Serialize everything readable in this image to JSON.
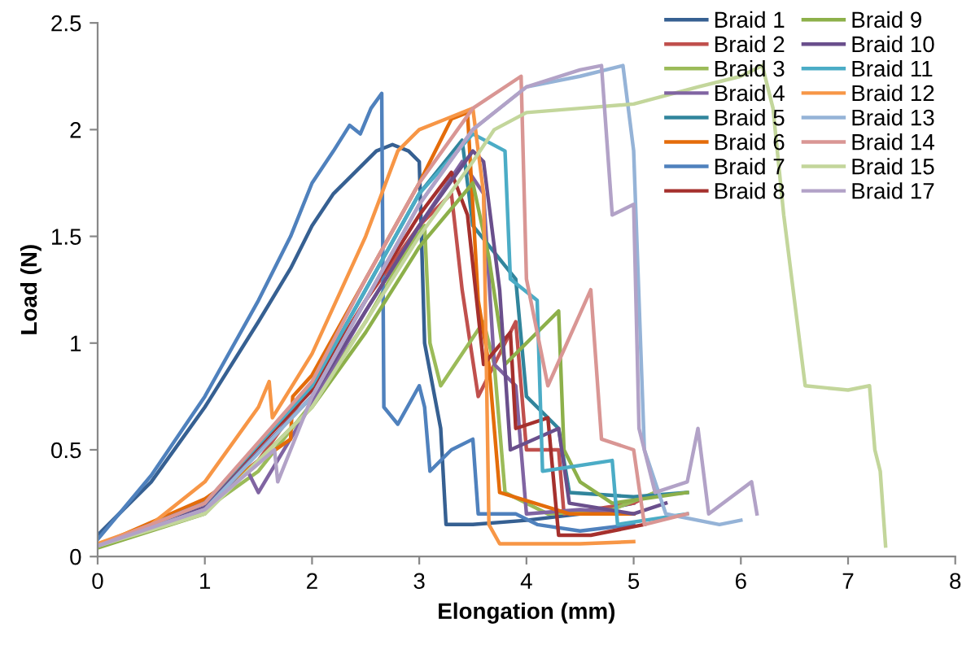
{
  "chart_data": {
    "type": "line",
    "xlabel": "Elongation (mm)",
    "ylabel": "Load (N)",
    "xlim": [
      0,
      8
    ],
    "xticks": [
      0,
      1,
      2,
      3,
      4,
      5,
      6,
      7,
      8
    ],
    "ylim": [
      0,
      2.5
    ],
    "yticks": [
      0,
      0.5,
      1,
      1.5,
      2,
      2.5
    ],
    "grid": false,
    "legend": "top right",
    "marker": "none",
    "line_style": "solid",
    "series": [
      {
        "name": "Braid 1",
        "color": "#366092",
        "x": [
          0,
          0.5,
          1,
          1.5,
          1.8,
          2,
          2.2,
          2.4,
          2.6,
          2.75,
          2.9,
          3.0,
          3.05,
          3.2,
          3.25,
          3.5,
          4,
          4.5,
          5
        ],
        "values": [
          0.1,
          0.35,
          0.7,
          1.1,
          1.35,
          1.55,
          1.7,
          1.8,
          1.9,
          1.93,
          1.9,
          1.85,
          1.0,
          0.6,
          0.15,
          0.15,
          0.17,
          0.2,
          0.25
        ]
      },
      {
        "name": "Braid 2",
        "color": "#c0504d",
        "x": [
          0,
          1,
          1.5,
          2,
          2.5,
          3,
          3.3,
          3.4,
          3.55,
          3.9,
          3.95,
          4.0,
          4.3,
          4.35,
          5,
          5.2
        ],
        "values": [
          0.05,
          0.25,
          0.45,
          0.8,
          1.2,
          1.55,
          1.7,
          1.25,
          0.75,
          1.1,
          0.8,
          0.5,
          0.5,
          0.2,
          0.25,
          0.3
        ]
      },
      {
        "name": "Braid 3",
        "color": "#9bbb59",
        "x": [
          0,
          1,
          1.5,
          2,
          2.5,
          2.9,
          3.05,
          3.1,
          3.2,
          3.6,
          3.7,
          3.8,
          4.2,
          4.8,
          5.2
        ],
        "values": [
          0.05,
          0.22,
          0.4,
          0.72,
          1.1,
          1.45,
          1.55,
          1.0,
          0.8,
          1.1,
          0.9,
          0.3,
          0.2,
          0.22,
          0.3
        ]
      },
      {
        "name": "Braid 4",
        "color": "#8064a2",
        "x": [
          0,
          1,
          1.4,
          1.5,
          2,
          2.5,
          3,
          3.4,
          3.6,
          3.7,
          3.9,
          4.0,
          4.5,
          5
        ],
        "values": [
          0.05,
          0.22,
          0.4,
          0.3,
          0.72,
          1.15,
          1.55,
          1.85,
          1.7,
          0.9,
          0.8,
          0.2,
          0.22,
          0.2
        ]
      },
      {
        "name": "Braid 5",
        "color": "#31859c",
        "x": [
          0,
          1,
          2,
          2.5,
          3,
          3.4,
          3.5,
          3.9,
          4.0,
          4.3,
          4.4,
          5,
          5.5
        ],
        "values": [
          0.05,
          0.25,
          0.8,
          1.25,
          1.7,
          1.95,
          1.55,
          1.3,
          0.75,
          0.6,
          0.3,
          0.28,
          0.3
        ]
      },
      {
        "name": "Braid 6",
        "color": "#e46c0a",
        "x": [
          0,
          1,
          1.8,
          1.82,
          2,
          2.5,
          3,
          3.3,
          3.45,
          3.55,
          3.65,
          3.75,
          4.4,
          5
        ],
        "values": [
          0.05,
          0.27,
          0.55,
          0.75,
          0.85,
          1.3,
          1.75,
          2.05,
          2.08,
          1.2,
          0.9,
          0.3,
          0.2,
          0.2
        ]
      },
      {
        "name": "Braid 7",
        "color": "#4f81bd",
        "x": [
          0,
          0.5,
          1,
          1.5,
          1.8,
          2,
          2.2,
          2.35,
          2.45,
          2.55,
          2.65,
          2.67,
          2.8,
          3.0,
          3.05,
          3.1,
          3.3,
          3.5,
          3.55,
          3.9,
          4.1,
          4.5,
          5
        ],
        "values": [
          0.08,
          0.38,
          0.75,
          1.2,
          1.5,
          1.75,
          1.9,
          2.02,
          1.98,
          2.1,
          2.17,
          0.7,
          0.62,
          0.8,
          0.7,
          0.4,
          0.5,
          0.55,
          0.2,
          0.2,
          0.15,
          0.12,
          0.15
        ]
      },
      {
        "name": "Braid 8",
        "color": "#a5302d",
        "x": [
          0,
          1,
          2,
          2.5,
          3,
          3.3,
          3.45,
          3.6,
          3.85,
          3.9,
          4.2,
          4.3,
          4.6,
          5.1
        ],
        "values": [
          0.05,
          0.25,
          0.78,
          1.2,
          1.6,
          1.8,
          1.6,
          0.9,
          1.05,
          0.6,
          0.65,
          0.1,
          0.1,
          0.15
        ]
      },
      {
        "name": "Braid 9",
        "color": "#8db04a",
        "x": [
          0,
          1,
          2,
          2.5,
          3,
          3.5,
          3.65,
          3.8,
          4.3,
          4.35,
          4.5,
          4.8,
          5.5
        ],
        "values": [
          0.04,
          0.2,
          0.7,
          1.05,
          1.45,
          1.75,
          1.4,
          0.9,
          1.15,
          0.5,
          0.35,
          0.25,
          0.3
        ]
      },
      {
        "name": "Braid 10",
        "color": "#6a4f8c",
        "x": [
          0,
          1,
          2,
          2.5,
          3,
          3.5,
          3.6,
          3.75,
          3.85,
          4.3,
          4.4,
          5,
          5.3
        ],
        "values": [
          0.05,
          0.23,
          0.75,
          1.15,
          1.55,
          1.9,
          1.85,
          1.25,
          0.5,
          0.6,
          0.25,
          0.2,
          0.25
        ]
      },
      {
        "name": "Braid 11",
        "color": "#4bacc6",
        "x": [
          0,
          1,
          2,
          2.5,
          3,
          3.5,
          3.8,
          3.85,
          4.1,
          4.15,
          4.8,
          4.85,
          5.5
        ],
        "values": [
          0.05,
          0.25,
          0.8,
          1.25,
          1.7,
          1.98,
          1.9,
          1.3,
          1.2,
          0.4,
          0.45,
          0.15,
          0.2
        ]
      },
      {
        "name": "Braid 12",
        "color": "#f79646",
        "x": [
          0,
          0.5,
          1,
          1.5,
          1.6,
          1.63,
          2,
          2.5,
          2.8,
          3,
          3.25,
          3.5,
          3.6,
          3.65,
          3.75,
          4.5,
          5
        ],
        "values": [
          0.06,
          0.15,
          0.35,
          0.7,
          0.82,
          0.65,
          0.95,
          1.5,
          1.9,
          2.0,
          2.05,
          2.1,
          1.7,
          0.15,
          0.06,
          0.06,
          0.07
        ]
      },
      {
        "name": "Braid 13",
        "color": "#95b3d7",
        "x": [
          0,
          1,
          2,
          2.5,
          3,
          3.5,
          4,
          4.5,
          4.9,
          5.0,
          5.1,
          5.3,
          5.8,
          6.0
        ],
        "values": [
          0.05,
          0.22,
          0.75,
          1.2,
          1.65,
          2.0,
          2.2,
          2.25,
          2.3,
          1.9,
          0.5,
          0.2,
          0.15,
          0.17
        ]
      },
      {
        "name": "Braid 14",
        "color": "#d99694",
        "x": [
          0,
          1,
          2,
          2.5,
          3,
          3.5,
          3.95,
          4.0,
          4.2,
          4.6,
          4.7,
          5,
          5.1,
          5.5
        ],
        "values": [
          0.05,
          0.25,
          0.82,
          1.3,
          1.75,
          2.1,
          2.25,
          1.3,
          0.8,
          1.25,
          0.55,
          0.5,
          0.15,
          0.2
        ]
      },
      {
        "name": "Braid 15",
        "color": "#c3d69b",
        "x": [
          0,
          1,
          2,
          2.5,
          3,
          3.5,
          3.7,
          4.0,
          4.5,
          5.0,
          5.6,
          6.0,
          6.2,
          6.3,
          6.4,
          6.5,
          6.6,
          7.0,
          7.2,
          7.25,
          7.3,
          7.35
        ],
        "values": [
          0.05,
          0.2,
          0.7,
          1.1,
          1.5,
          1.85,
          2.0,
          2.08,
          2.1,
          2.12,
          2.2,
          2.25,
          2.3,
          2.1,
          1.6,
          1.2,
          0.8,
          0.78,
          0.8,
          0.5,
          0.4,
          0.05
        ]
      },
      {
        "name": "Braid 17",
        "color": "#b2a2c7",
        "x": [
          0,
          1,
          1.65,
          1.68,
          2,
          2.5,
          3,
          3.5,
          4,
          4.5,
          4.7,
          4.75,
          4.8,
          5.0,
          5.05,
          5.2,
          5.5,
          5.6,
          5.7,
          6.1,
          6.15
        ],
        "values": [
          0.05,
          0.22,
          0.5,
          0.35,
          0.75,
          1.2,
          1.65,
          2.0,
          2.2,
          2.28,
          2.3,
          1.95,
          1.6,
          1.65,
          0.6,
          0.3,
          0.35,
          0.6,
          0.2,
          0.35,
          0.2
        ]
      }
    ]
  }
}
